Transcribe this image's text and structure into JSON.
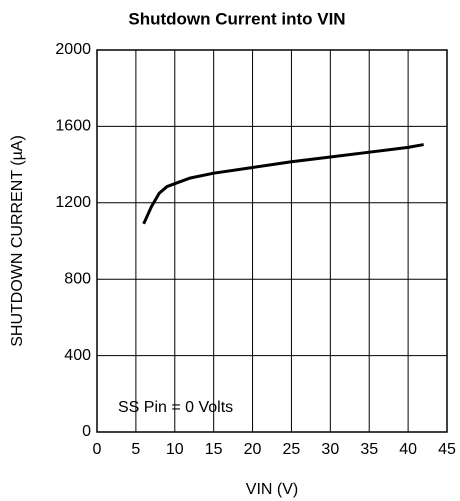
{
  "chart_data": {
    "type": "line",
    "title": "Shutdown Current into VIN",
    "x_label": "VIN (V)",
    "y_label": "SHUTDOWN CURRENT (µA)",
    "annotation": "SS Pin = 0 Volts",
    "x": [
      6,
      7,
      8,
      9,
      10,
      12,
      15,
      20,
      25,
      30,
      35,
      40,
      42
    ],
    "series": [
      {
        "name": "Shutdown Current",
        "color": "#000000",
        "values": [
          1090,
          1180,
          1250,
          1285,
          1300,
          1330,
          1355,
          1385,
          1415,
          1440,
          1465,
          1490,
          1505
        ]
      }
    ],
    "xlim": [
      0,
      45
    ],
    "xticks": [
      0,
      5,
      10,
      15,
      20,
      25,
      30,
      35,
      40,
      45
    ],
    "ylim": [
      0,
      2000
    ],
    "yticks": [
      0,
      400,
      800,
      1200,
      1600,
      2000
    ],
    "grid": true
  }
}
